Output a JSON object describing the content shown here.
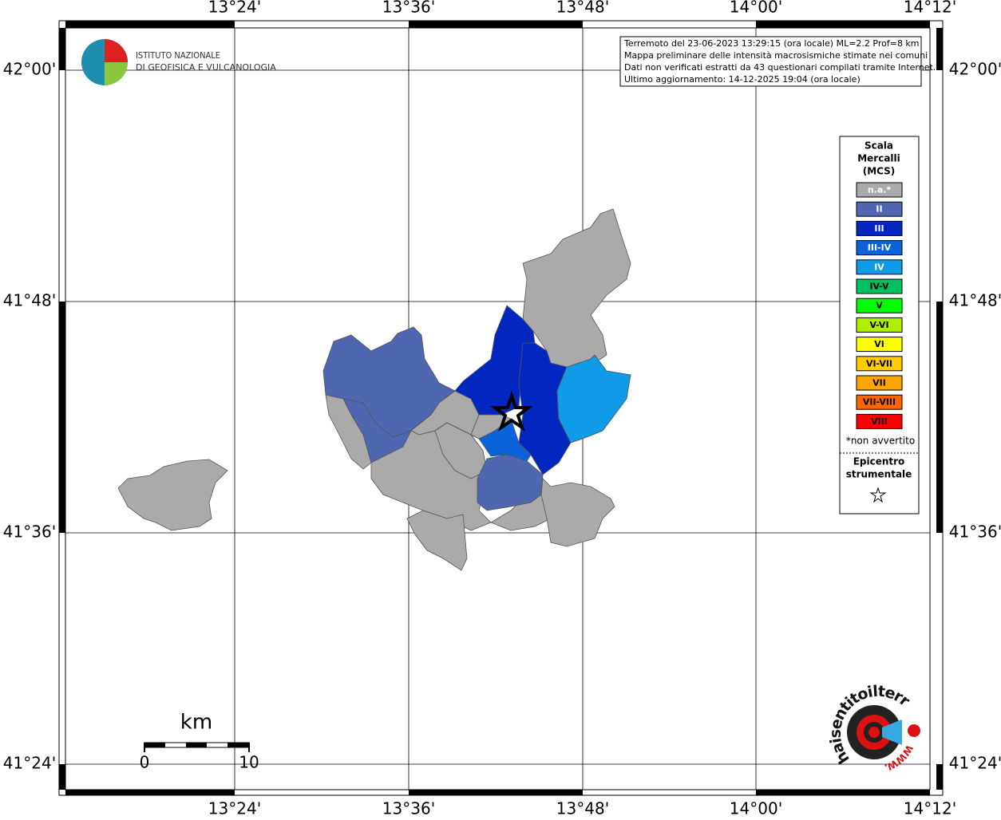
{
  "header": {
    "logo_line1": "ISTITUTO NAZIONALE",
    "logo_line2": "DI GEOFISICA E VULCANOLOGIA"
  },
  "info": [
    "Terremoto del 23-06-2023 13:29:15 (ora locale) ML=2.2 Prof=8 km",
    "Mappa preliminare delle intensità macrosismiche stimate nei comuni",
    "Dati non verificati estratti da 43 questionari compilati tramite Internet.",
    "Ultimo aggiornamento: 14-12-2025 19:04 (ora locale)"
  ],
  "graticule": {
    "lon_labels": [
      "13°24'",
      "13°36'",
      "13°48'",
      "14°00'",
      "14°12'"
    ],
    "lat_labels": [
      "42°00'",
      "41°48'",
      "41°36'",
      "41°24'"
    ]
  },
  "legend": {
    "title": [
      "Scala",
      "Mercalli",
      "(MCS)"
    ],
    "items": [
      {
        "label": "n.a.*",
        "color": "#aaaaaa"
      },
      {
        "label": "II",
        "color": "#4f66b0"
      },
      {
        "label": "III",
        "color": "#0227c0"
      },
      {
        "label": "III-IV",
        "color": "#0a63d8"
      },
      {
        "label": "IV",
        "color": "#0f9be6"
      },
      {
        "label": "IV-V",
        "color": "#00c060"
      },
      {
        "label": "V",
        "color": "#00ff00"
      },
      {
        "label": "V-VI",
        "color": "#b0ee00"
      },
      {
        "label": "VI",
        "color": "#ffff00"
      },
      {
        "label": "VI-VII",
        "color": "#ffcc00"
      },
      {
        "label": "VII",
        "color": "#ffa500"
      },
      {
        "label": "VII-VIII",
        "color": "#ff6600"
      },
      {
        "label": "VIII",
        "color": "#ff0000"
      }
    ],
    "note": "*non avvertito",
    "epicenter": [
      "Epicentro",
      "strumentale"
    ]
  },
  "scale_bar": {
    "unit": "km",
    "start": "0",
    "end": "10"
  },
  "site_logo": {
    "text": "haisentitoilterremoto.it",
    "www": "WWW."
  }
}
